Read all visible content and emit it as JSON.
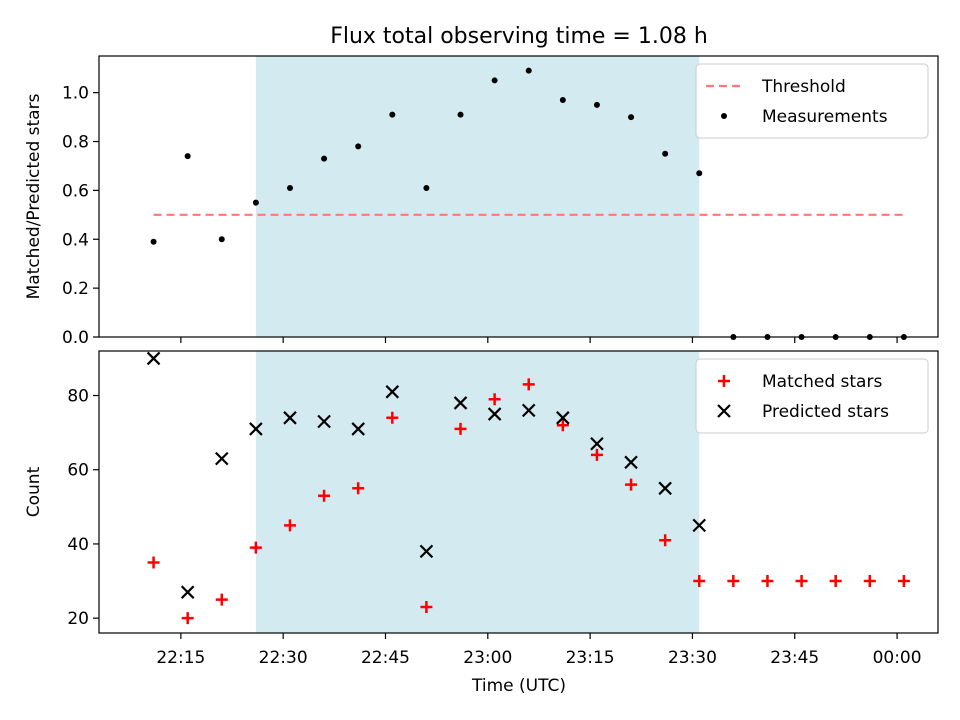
{
  "chart_data": {
    "title": "Flux total observing time = 1.08 h",
    "xlabel": "Time (UTC)",
    "x_ticks": [
      "22:15",
      "22:30",
      "22:45",
      "23:00",
      "23:15",
      "23:30",
      "23:45",
      "00:00"
    ],
    "x_range": [
      "22:03",
      "00:06"
    ],
    "highlight_window": [
      "22:26",
      "23:31"
    ],
    "highlight_color": "#d3eaf0",
    "times": [
      "22:11",
      "22:16",
      "22:21",
      "22:26",
      "22:31",
      "22:36",
      "22:41",
      "22:46",
      "22:51",
      "22:56",
      "23:01",
      "23:06",
      "23:11",
      "23:16",
      "23:21",
      "23:26",
      "23:31",
      "23:36",
      "23:41",
      "23:46",
      "23:51",
      "23:56",
      "00:01"
    ],
    "panels": [
      {
        "type": "scatter",
        "ylabel": "Matched/Predicted stars",
        "ylim": [
          0,
          1.15
        ],
        "yticks": [
          "0.0",
          "0.2",
          "0.4",
          "0.6",
          "0.8",
          "1.0"
        ],
        "legend_position": "top-right",
        "threshold": {
          "name": "Threshold",
          "value": 0.5,
          "x_from": "22:11",
          "x_to": "00:01",
          "color": "#ff7777"
        },
        "series": [
          {
            "name": "Measurements",
            "marker": "dot",
            "color": "#000000",
            "values": [
              0.39,
              0.74,
              0.4,
              0.55,
              0.61,
              0.73,
              0.78,
              0.91,
              0.61,
              0.91,
              1.05,
              1.09,
              0.97,
              0.95,
              0.9,
              0.75,
              0.67,
              0.0,
              0.0,
              0.0,
              0.0,
              0.0,
              0.0
            ]
          }
        ]
      },
      {
        "type": "scatter",
        "ylabel": "Count",
        "ylim": [
          16,
          92
        ],
        "yticks": [
          "20",
          "40",
          "60",
          "80"
        ],
        "legend_position": "top-right",
        "series": [
          {
            "name": "Matched stars",
            "marker": "plus",
            "color": "#ff0000",
            "values": [
              35,
              20,
              25,
              39,
              45,
              53,
              55,
              74,
              23,
              71,
              79,
              83,
              72,
              64,
              56,
              41,
              30,
              30,
              30,
              30,
              30,
              30,
              30
            ]
          },
          {
            "name": "Predicted stars",
            "marker": "x",
            "color": "#000000",
            "values": [
              90,
              27,
              63,
              71,
              74,
              73,
              71,
              81,
              38,
              78,
              75,
              76,
              74,
              67,
              62,
              55,
              45,
              null,
              null,
              null,
              null,
              null,
              null
            ]
          }
        ]
      }
    ]
  }
}
